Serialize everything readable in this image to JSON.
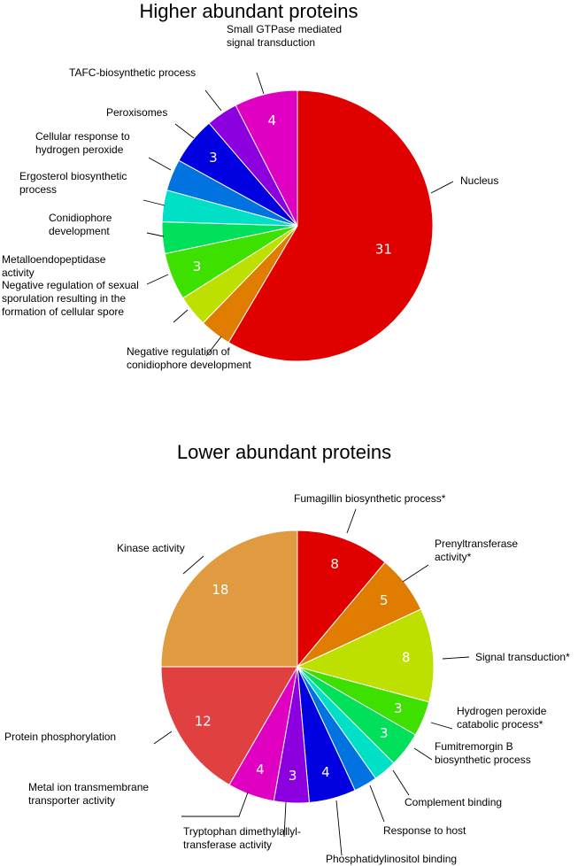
{
  "chart_data": [
    {
      "type": "pie",
      "title": "Higher abundant proteins",
      "slices": [
        {
          "label": [
            "Nucleus"
          ],
          "value": 31,
          "value_label": "31",
          "color": "#e00000"
        },
        {
          "label": [
            "Negative regulation of",
            "conidiophore development"
          ],
          "value": 2,
          "value_label": "",
          "color": "#e07c00"
        },
        {
          "label": [
            "Negative regulation of sexual",
            "sporulation resulting in the",
            "formation of cellular spore"
          ],
          "value": 2,
          "value_label": "",
          "color": "#bde000"
        },
        {
          "label": [
            "Metalloendopeptidase",
            "activity"
          ],
          "value": 3,
          "value_label": "3",
          "color": "#3ee000"
        },
        {
          "label": [
            "Conidiophore",
            "development"
          ],
          "value": 2,
          "value_label": "",
          "color": "#00e05a"
        },
        {
          "label": [
            "Ergosterol biosynthetic",
            "process"
          ],
          "value": 2,
          "value_label": "",
          "color": "#00e0c7"
        },
        {
          "label": [
            "Cellular response to",
            "hydrogen peroxide"
          ],
          "value": 2,
          "value_label": "",
          "color": "#0073e0"
        },
        {
          "label": [
            "Peroxisomes"
          ],
          "value": 3,
          "value_label": "3",
          "color": "#0000e0"
        },
        {
          "label": [
            "TAFC-biosynthetic process"
          ],
          "value": 2,
          "value_label": "",
          "color": "#8c00e0"
        },
        {
          "label": [
            "Small GTPase mediated",
            "signal transduction"
          ],
          "value": 4,
          "value_label": "4",
          "color": "#e000c2"
        }
      ]
    },
    {
      "type": "pie",
      "title": "Lower abundant proteins",
      "slices": [
        {
          "label": [
            "Fumagillin biosynthetic process*"
          ],
          "value": 8,
          "value_label": "8",
          "color": "#e00000"
        },
        {
          "label": [
            "Prenyltransferase",
            "activity*"
          ],
          "value": 5,
          "value_label": "5",
          "color": "#e07c00"
        },
        {
          "label": [
            "Signal transduction*"
          ],
          "value": 8,
          "value_label": "8",
          "color": "#bde000"
        },
        {
          "label": [
            "Hydrogen peroxide",
            "catabolic process*"
          ],
          "value": 3,
          "value_label": "3",
          "color": "#3ee000"
        },
        {
          "label": [
            "Fumitremorgin B",
            "biosynthetic process"
          ],
          "value": 3,
          "value_label": "3",
          "color": "#00e05a"
        },
        {
          "label": [
            "Complement binding"
          ],
          "value": 2,
          "value_label": "",
          "color": "#00e0c7"
        },
        {
          "label": [
            "Response to host"
          ],
          "value": 2,
          "value_label": "",
          "color": "#0073e0"
        },
        {
          "label": [
            "Phosphatidylinositol binding"
          ],
          "value": 4,
          "value_label": "4",
          "color": "#0000e0"
        },
        {
          "label": [
            "Tryptophan dimethylallyl-",
            "transferase activity"
          ],
          "value": 3,
          "value_label": "3",
          "color": "#8c00e0"
        },
        {
          "label": [
            "Metal ion transmembrane",
            "transporter activity"
          ],
          "value": 4,
          "value_label": "4",
          "color": "#e000c2"
        },
        {
          "label": [
            "Protein phosphorylation"
          ],
          "value": 12,
          "value_label": "12",
          "color": "#e04040"
        },
        {
          "label": [
            "Kinase activity"
          ],
          "value": 18,
          "value_label": "18",
          "color": "#e09a40"
        }
      ]
    }
  ]
}
